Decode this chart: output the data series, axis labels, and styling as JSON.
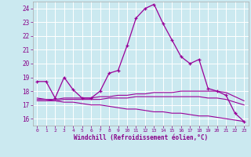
{
  "background_color": "#cbe9f0",
  "grid_color": "#ffffff",
  "line_color": "#990099",
  "xlim": [
    -0.5,
    23.5
  ],
  "ylim": [
    15.5,
    24.5
  ],
  "yticks": [
    16,
    17,
    18,
    19,
    20,
    21,
    22,
    23,
    24
  ],
  "xticks": [
    0,
    1,
    2,
    3,
    4,
    5,
    6,
    7,
    8,
    9,
    10,
    11,
    12,
    13,
    14,
    15,
    16,
    17,
    18,
    19,
    20,
    21,
    22,
    23
  ],
  "xlabel": "Windchill (Refroidissement éolien,°C)",
  "series": {
    "main": {
      "x": [
        0,
        1,
        2,
        3,
        4,
        5,
        6,
        7,
        8,
        9,
        10,
        11,
        12,
        13,
        14,
        15,
        16,
        17,
        18,
        19,
        20,
        21,
        22,
        23
      ],
      "y": [
        18.7,
        18.7,
        17.5,
        19.0,
        18.1,
        17.5,
        17.5,
        18.0,
        19.3,
        19.5,
        21.3,
        23.3,
        24.0,
        24.3,
        22.9,
        21.7,
        20.5,
        20.0,
        20.3,
        18.2,
        18.0,
        17.7,
        16.4,
        15.8
      ]
    },
    "flat1": {
      "x": [
        0,
        1,
        2,
        3,
        4,
        5,
        6,
        7,
        8,
        9,
        10,
        11,
        12,
        13,
        14,
        15,
        16,
        17,
        18,
        19,
        20,
        21,
        22,
        23
      ],
      "y": [
        17.4,
        17.4,
        17.4,
        17.5,
        17.5,
        17.5,
        17.5,
        17.6,
        17.6,
        17.7,
        17.7,
        17.8,
        17.8,
        17.9,
        17.9,
        17.9,
        18.0,
        18.0,
        18.0,
        18.0,
        18.0,
        17.9,
        17.6,
        17.3
      ]
    },
    "flat2": {
      "x": [
        0,
        1,
        2,
        3,
        4,
        5,
        6,
        7,
        8,
        9,
        10,
        11,
        12,
        13,
        14,
        15,
        16,
        17,
        18,
        19,
        20,
        21,
        22,
        23
      ],
      "y": [
        17.3,
        17.3,
        17.3,
        17.4,
        17.4,
        17.4,
        17.4,
        17.4,
        17.5,
        17.5,
        17.5,
        17.6,
        17.6,
        17.6,
        17.6,
        17.6,
        17.6,
        17.6,
        17.6,
        17.5,
        17.5,
        17.4,
        17.2,
        17.0
      ]
    },
    "descending": {
      "x": [
        0,
        1,
        2,
        3,
        4,
        5,
        6,
        7,
        8,
        9,
        10,
        11,
        12,
        13,
        14,
        15,
        16,
        17,
        18,
        19,
        20,
        21,
        22,
        23
      ],
      "y": [
        17.5,
        17.4,
        17.3,
        17.2,
        17.2,
        17.1,
        17.0,
        17.0,
        16.9,
        16.8,
        16.7,
        16.7,
        16.6,
        16.5,
        16.5,
        16.4,
        16.4,
        16.3,
        16.2,
        16.2,
        16.1,
        16.0,
        15.9,
        15.8
      ]
    }
  }
}
